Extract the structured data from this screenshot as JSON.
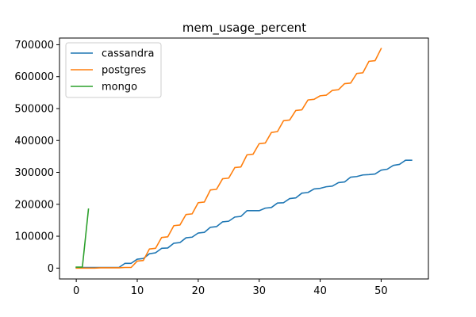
{
  "chart_data": {
    "type": "line",
    "title": "mem_usage_percent",
    "xlabel": "",
    "ylabel": "",
    "xlim": [
      -2.75,
      57.75
    ],
    "ylim": [
      -34000,
      721000
    ],
    "x_ticks": [
      0,
      10,
      20,
      30,
      40,
      50
    ],
    "y_ticks": [
      0,
      100000,
      200000,
      300000,
      400000,
      500000,
      600000,
      700000
    ],
    "x_tick_labels": [
      "0",
      "10",
      "20",
      "30",
      "40",
      "50"
    ],
    "y_tick_labels": [
      "0",
      "100000",
      "200000",
      "300000",
      "400000",
      "500000",
      "600000",
      "700000"
    ],
    "grid": false,
    "legend_position": "upper-left",
    "series": [
      {
        "name": "cassandra",
        "color": "#1f77b4",
        "x": [
          0,
          1,
          2,
          3,
          4,
          5,
          6,
          7,
          8,
          9,
          10,
          11,
          12,
          13,
          14,
          15,
          16,
          17,
          18,
          19,
          20,
          21,
          22,
          23,
          24,
          25,
          26,
          27,
          28,
          29,
          30,
          31,
          32,
          33,
          34,
          35,
          36,
          37,
          38,
          39,
          40,
          41,
          42,
          43,
          44,
          45,
          46,
          47,
          48,
          49,
          50,
          51,
          52,
          53,
          54,
          55
        ],
        "y": [
          2000,
          2000,
          2000,
          2000,
          2000,
          2000,
          2000,
          2000,
          15000,
          15000,
          28000,
          30000,
          45000,
          48000,
          62000,
          63000,
          78000,
          80000,
          95000,
          97000,
          110000,
          112000,
          128000,
          130000,
          145000,
          147000,
          160000,
          162000,
          180000,
          180000,
          180000,
          188000,
          190000,
          204000,
          205000,
          218000,
          220000,
          235000,
          237000,
          248000,
          250000,
          255000,
          257000,
          268000,
          270000,
          285000,
          287000,
          292000,
          293000,
          295000,
          307000,
          310000,
          322000,
          325000,
          338000,
          338000
        ]
      },
      {
        "name": "postgres",
        "color": "#ff7f0e",
        "x": [
          0,
          1,
          2,
          3,
          4,
          5,
          6,
          7,
          8,
          9,
          10,
          11,
          12,
          13,
          14,
          15,
          16,
          17,
          18,
          19,
          20,
          21,
          22,
          23,
          24,
          25,
          26,
          27,
          28,
          29,
          30,
          31,
          32,
          33,
          34,
          35,
          36,
          37,
          38,
          39,
          40,
          41,
          42,
          43,
          44,
          45,
          46,
          47,
          48,
          49,
          50
        ],
        "y": [
          0,
          0,
          0,
          0,
          1000,
          1000,
          1000,
          1000,
          2000,
          2000,
          22000,
          24000,
          60000,
          62000,
          96000,
          98000,
          133000,
          135000,
          168000,
          170000,
          205000,
          207000,
          245000,
          247000,
          280000,
          282000,
          315000,
          317000,
          355000,
          357000,
          390000,
          392000,
          425000,
          428000,
          462000,
          464000,
          494000,
          496000,
          527000,
          529000,
          540000,
          542000,
          557000,
          559000,
          578000,
          580000,
          610000,
          612000,
          648000,
          650000,
          688000
        ]
      },
      {
        "name": "mongo",
        "color": "#2ca02c",
        "x": [
          0,
          1,
          2
        ],
        "y": [
          3000,
          3000,
          185000
        ]
      }
    ]
  }
}
